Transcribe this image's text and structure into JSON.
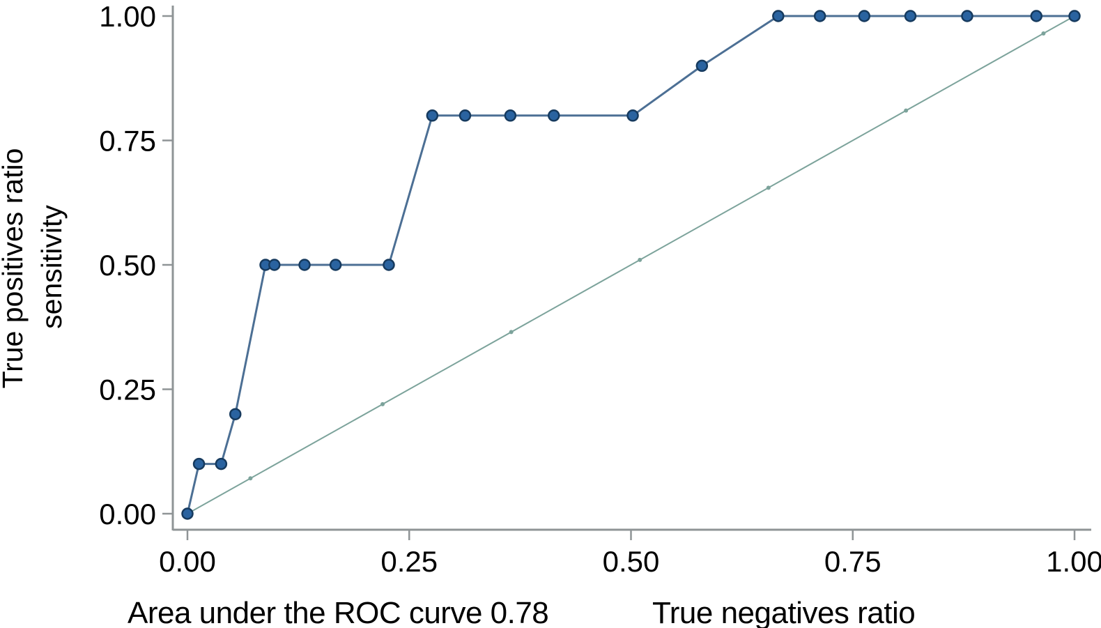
{
  "figure": {
    "background_color": "#ffffff",
    "text_color": "#000000",
    "axis_color": "#8f9496"
  },
  "chart_data": {
    "type": "line",
    "subtype": "roc-curve",
    "title": "",
    "xlabel": "True negatives ratio",
    "ylabel": "True positives ratio sensitivity",
    "ylabel_line1": "True positives ratio",
    "ylabel_line2": "sensitivity",
    "auc_caption": "Area under the ROC curve 0.78",
    "auc_value": 0.78,
    "xlim": [
      0,
      1
    ],
    "ylim": [
      0,
      1
    ],
    "grid": false,
    "legend_position": "none",
    "x_ticks": [
      {
        "value": 0.0,
        "label": "0.00"
      },
      {
        "value": 0.25,
        "label": "0.25"
      },
      {
        "value": 0.5,
        "label": "0.50"
      },
      {
        "value": 0.75,
        "label": "0.75"
      },
      {
        "value": 1.0,
        "label": "1.00"
      }
    ],
    "y_ticks": [
      {
        "value": 0.0,
        "label": "0.00"
      },
      {
        "value": 0.25,
        "label": "0.25"
      },
      {
        "value": 0.5,
        "label": "0.50"
      },
      {
        "value": 0.75,
        "label": "0.75"
      },
      {
        "value": 1.0,
        "label": "1.00"
      }
    ],
    "series": [
      {
        "name": "Reference diagonal",
        "role": "reference",
        "line_color": "#7ca39b",
        "line_width": 2,
        "marker_fill": "#7ca39b",
        "marker_radius": 3,
        "points": [
          [
            0,
            0
          ],
          [
            1,
            1
          ]
        ],
        "small_marker_x": [
          0.071,
          0.22,
          0.365,
          0.51,
          0.655,
          0.81,
          0.965
        ]
      },
      {
        "name": "ROC curve",
        "role": "roc",
        "line_color": "#4c6f94",
        "line_width": 3,
        "marker_fill": "#2a63a0",
        "marker_edge": "#163a5e",
        "marker_radius": 7.5,
        "points": [
          [
            0.0,
            0.0
          ],
          [
            0.013,
            0.1
          ],
          [
            0.038,
            0.1
          ],
          [
            0.054,
            0.2
          ],
          [
            0.088,
            0.5
          ],
          [
            0.098,
            0.5
          ],
          [
            0.132,
            0.5
          ],
          [
            0.167,
            0.5
          ],
          [
            0.227,
            0.5
          ],
          [
            0.276,
            0.8
          ],
          [
            0.313,
            0.8
          ],
          [
            0.364,
            0.8
          ],
          [
            0.413,
            0.8
          ],
          [
            0.502,
            0.8
          ],
          [
            0.58,
            0.9
          ],
          [
            0.666,
            1.0
          ],
          [
            0.713,
            1.0
          ],
          [
            0.763,
            1.0
          ],
          [
            0.815,
            1.0
          ],
          [
            0.879,
            1.0
          ],
          [
            0.957,
            1.0
          ],
          [
            1.0,
            1.0
          ]
        ]
      }
    ]
  }
}
